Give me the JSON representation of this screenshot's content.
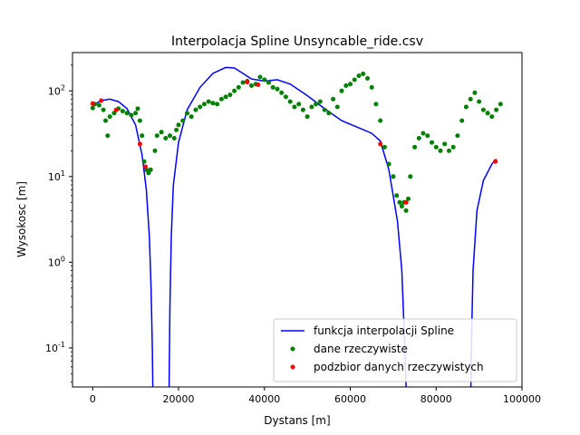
{
  "chart_data": {
    "type": "scatter",
    "title": "Interpolacja Spline Unsyncable_ride.csv",
    "xlabel": "Dystans [m]",
    "ylabel": "Wysokosc [m]",
    "xlim": [
      -4700,
      100000
    ],
    "ylim": [
      0.035,
      280
    ],
    "yscale": "log",
    "x_ticks": [
      0,
      20000,
      40000,
      60000,
      80000,
      100000
    ],
    "x_tick_labels": [
      "0",
      "20000",
      "40000",
      "60000",
      "80000",
      "100000"
    ],
    "y_ticks": [
      0.1,
      1,
      10,
      100
    ],
    "y_tick_labels": [
      "10^-1",
      "10^0",
      "10^1",
      "10^2"
    ],
    "legend_position": "lower-right",
    "grid": false,
    "series": [
      {
        "name": "funkcja interpolacji Spline",
        "kind": "line",
        "color": "#0000ff",
        "segments": [
          [
            [
              0,
              68
            ],
            [
              2000,
              77
            ],
            [
              4000,
              80
            ],
            [
              6000,
              75
            ],
            [
              8000,
              62
            ],
            [
              10000,
              40
            ],
            [
              11500,
              18
            ],
            [
              12500,
              7
            ],
            [
              13200,
              2
            ],
            [
              13600,
              0.5
            ],
            [
              13900,
              0.1
            ],
            [
              14000,
              0.035
            ]
          ],
          [
            [
              17800,
              0.035
            ],
            [
              18000,
              0.3
            ],
            [
              18300,
              2
            ],
            [
              18800,
              8
            ],
            [
              20000,
              25
            ],
            [
              22000,
              60
            ],
            [
              25000,
              110
            ],
            [
              28000,
              160
            ],
            [
              31000,
              188
            ],
            [
              33000,
              185
            ],
            [
              35000,
              160
            ],
            [
              37000,
              138
            ],
            [
              40000,
              130
            ],
            [
              43000,
              135
            ],
            [
              46000,
              120
            ],
            [
              50000,
              88
            ],
            [
              54000,
              62
            ],
            [
              58000,
              45
            ],
            [
              62000,
              37
            ],
            [
              65000,
              32
            ],
            [
              67000,
              26
            ],
            [
              69000,
              12
            ],
            [
              71000,
              3
            ],
            [
              72000,
              0.8
            ],
            [
              72700,
              0.1
            ],
            [
              73000,
              0.035
            ]
          ],
          [
            [
              88100,
              0.035
            ],
            [
              88200,
              0.1
            ],
            [
              88600,
              0.8
            ],
            [
              89500,
              4
            ],
            [
              91000,
              9
            ],
            [
              93000,
              14
            ],
            [
              94000,
              16
            ]
          ]
        ]
      },
      {
        "name": "dane rzeczywiste",
        "kind": "scatter",
        "color": "#008000",
        "points": [
          [
            0,
            63
          ],
          [
            500,
            70
          ],
          [
            1500,
            68
          ],
          [
            2500,
            60
          ],
          [
            3000,
            45
          ],
          [
            3500,
            30
          ],
          [
            4000,
            50
          ],
          [
            5000,
            55
          ],
          [
            6000,
            62
          ],
          [
            7000,
            58
          ],
          [
            8000,
            55
          ],
          [
            9000,
            52
          ],
          [
            10000,
            55
          ],
          [
            10500,
            62
          ],
          [
            11000,
            45
          ],
          [
            11500,
            30
          ],
          [
            12000,
            15
          ],
          [
            12500,
            12
          ],
          [
            13000,
            11
          ],
          [
            13500,
            12
          ],
          [
            14500,
            20
          ],
          [
            15000,
            30
          ],
          [
            16000,
            33
          ],
          [
            17000,
            28
          ],
          [
            18000,
            30
          ],
          [
            19000,
            28
          ],
          [
            19500,
            35
          ],
          [
            20000,
            40
          ],
          [
            21000,
            45
          ],
          [
            22000,
            55
          ],
          [
            23000,
            50
          ],
          [
            24000,
            60
          ],
          [
            25000,
            65
          ],
          [
            26000,
            70
          ],
          [
            27000,
            75
          ],
          [
            28000,
            72
          ],
          [
            29000,
            70
          ],
          [
            30000,
            80
          ],
          [
            31000,
            85
          ],
          [
            32000,
            90
          ],
          [
            33000,
            100
          ],
          [
            34000,
            110
          ],
          [
            35000,
            125
          ],
          [
            36000,
            130
          ],
          [
            37000,
            115
          ],
          [
            38000,
            120
          ],
          [
            39000,
            145
          ],
          [
            40000,
            135
          ],
          [
            41000,
            125
          ],
          [
            42000,
            110
          ],
          [
            43000,
            105
          ],
          [
            44000,
            95
          ],
          [
            45000,
            85
          ],
          [
            46000,
            75
          ],
          [
            47000,
            65
          ],
          [
            48000,
            70
          ],
          [
            49000,
            60
          ],
          [
            50000,
            50
          ],
          [
            51000,
            65
          ],
          [
            52000,
            70
          ],
          [
            53000,
            75
          ],
          [
            54000,
            60
          ],
          [
            55000,
            55
          ],
          [
            56000,
            80
          ],
          [
            57000,
            65
          ],
          [
            58000,
            100
          ],
          [
            59000,
            115
          ],
          [
            60000,
            120
          ],
          [
            61000,
            135
          ],
          [
            62000,
            150
          ],
          [
            63000,
            158
          ],
          [
            64000,
            140
          ],
          [
            65000,
            110
          ],
          [
            66000,
            70
          ],
          [
            67000,
            45
          ],
          [
            68000,
            22
          ],
          [
            69000,
            14
          ],
          [
            70000,
            10
          ],
          [
            70800,
            6
          ],
          [
            71500,
            5
          ],
          [
            72000,
            4.5
          ],
          [
            72500,
            5
          ],
          [
            73000,
            4
          ],
          [
            73500,
            5.5
          ],
          [
            74000,
            10
          ],
          [
            75000,
            22
          ],
          [
            76000,
            28
          ],
          [
            77000,
            32
          ],
          [
            78000,
            30
          ],
          [
            79000,
            25
          ],
          [
            80000,
            22
          ],
          [
            81000,
            20
          ],
          [
            82000,
            24
          ],
          [
            83000,
            20
          ],
          [
            84000,
            22
          ],
          [
            85000,
            30
          ],
          [
            86000,
            45
          ],
          [
            87000,
            65
          ],
          [
            88000,
            80
          ],
          [
            89000,
            95
          ],
          [
            90000,
            75
          ],
          [
            91000,
            60
          ],
          [
            92000,
            55
          ],
          [
            93000,
            50
          ],
          [
            94000,
            60
          ],
          [
            95000,
            70
          ]
        ]
      },
      {
        "name": "podzbior danych rzeczywistych",
        "kind": "scatter",
        "color": "#ff0000",
        "points": [
          [
            0,
            71
          ],
          [
            2000,
            77
          ],
          [
            5500,
            60
          ],
          [
            11000,
            24
          ],
          [
            12300,
            13
          ],
          [
            36000,
            127
          ],
          [
            38500,
            118
          ],
          [
            67000,
            24
          ],
          [
            73000,
            5
          ],
          [
            93800,
            15
          ]
        ]
      }
    ]
  }
}
